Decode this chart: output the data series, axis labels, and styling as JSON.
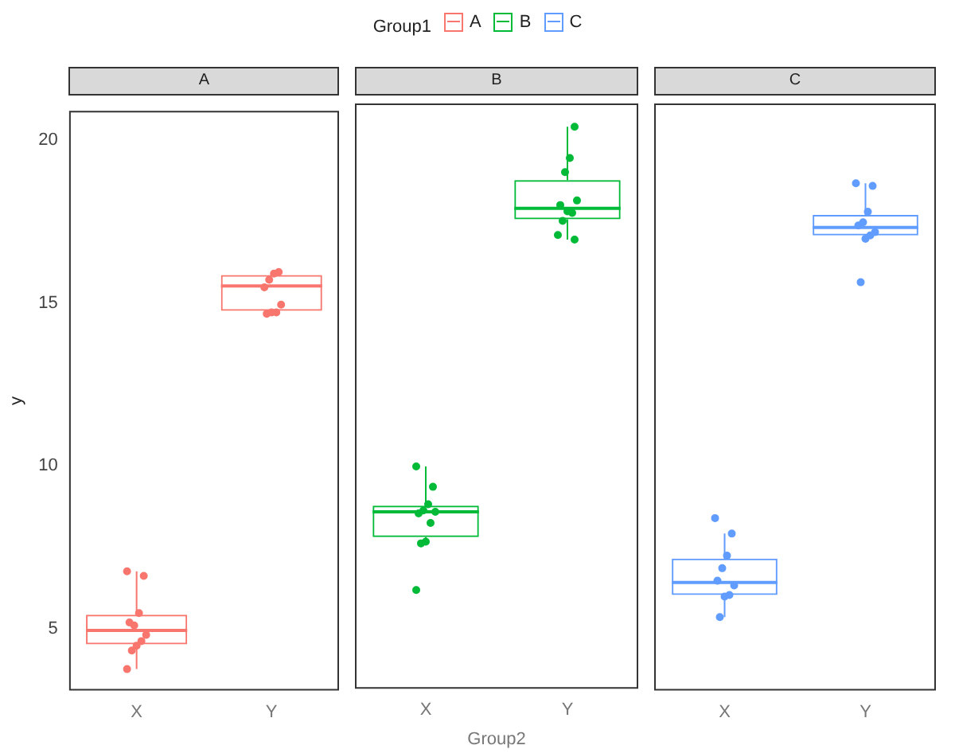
{
  "chart_data": [
    {
      "type": "box",
      "title": "A",
      "ylabel": "y",
      "legend": "top",
      "legend_title": "Group1",
      "categories": [
        "X",
        "Y"
      ],
      "ylim": [
        3.1,
        20.9
      ],
      "yticks": [
        5,
        10,
        15,
        20
      ],
      "grid": false,
      "series": [
        {
          "name": "A",
          "type": "box",
          "color": "#f8766d",
          "boxes": [
            {
              "low": 3.76,
              "q1": 4.52,
              "median": 4.95,
              "q3": 5.43,
              "high": 6.76
            },
            {
              "low": 14.67,
              "q1": 14.76,
              "median": 15.52,
              "q3": 15.86,
              "high": 15.95
            }
          ]
        },
        {
          "type": "scatter",
          "color": "#f8766d",
          "x": [
            "X",
            "X",
            "X",
            "X",
            "X",
            "X",
            "X",
            "X",
            "X",
            "X",
            "Y",
            "Y",
            "Y",
            "Y",
            "Y",
            "Y",
            "Y",
            "Y"
          ],
          "values": [
            6.76,
            6.62,
            5.48,
            5.1,
            5.19,
            4.81,
            4.62,
            4.48,
            4.33,
            3.76,
            15.95,
            15.9,
            15.71,
            15.48,
            14.95,
            14.71,
            14.71,
            14.67
          ]
        }
      ]
    },
    {
      "type": "box",
      "title": "B",
      "xlabel": "Group2",
      "tick_labels": "x",
      "categories": [
        "X",
        "Y"
      ],
      "ylim": [
        3.1,
        20.9
      ],
      "yticks": [
        5,
        10,
        15,
        20
      ],
      "grid": false,
      "series": [
        {
          "name": "B",
          "type": "box",
          "color": "#00ba38",
          "boxes": [
            {
              "low": 7.52,
              "q1": 7.71,
              "median": 8.48,
              "q3": 8.67,
              "high": 9.86
            },
            {
              "low": 16.76,
              "q1": 17.38,
              "median": 17.71,
              "q3": 18.57,
              "high": 20.19
            }
          ]
        },
        {
          "type": "scatter",
          "color": "#00ba38",
          "x": [
            "X",
            "X",
            "X",
            "X",
            "X",
            "X",
            "X",
            "X",
            "X",
            "X",
            "Y",
            "Y",
            "Y",
            "Y",
            "Y",
            "Y",
            "Y",
            "Y",
            "Y",
            "Y"
          ],
          "values": [
            9.86,
            9.24,
            8.71,
            8.52,
            8.43,
            8.48,
            8.14,
            7.57,
            7.52,
            6.1,
            20.19,
            19.24,
            18.81,
            17.81,
            17.95,
            17.57,
            17.62,
            17.33,
            16.9,
            16.76
          ]
        }
      ]
    },
    {
      "type": "box",
      "title": "C",
      "tick_labels": "x",
      "categories": [
        "X",
        "Y"
      ],
      "ylim": [
        3.1,
        20.9
      ],
      "yticks": [
        5,
        10,
        15,
        20
      ],
      "grid": false,
      "series": [
        {
          "name": "C",
          "type": "box",
          "color": "#619cff",
          "boxes": [
            {
              "low": 5.33,
              "q1": 6.0,
              "median": 6.38,
              "q3": 7.1,
              "high": 7.86
            },
            {
              "low": 16.76,
              "q1": 16.9,
              "median": 17.14,
              "q3": 17.52,
              "high": 18.48
            }
          ]
        },
        {
          "type": "scatter",
          "color": "#619cff",
          "x": [
            "X",
            "X",
            "X",
            "X",
            "X",
            "X",
            "X",
            "X",
            "X",
            "Y",
            "Y",
            "Y",
            "Y",
            "Y",
            "Y",
            "Y",
            "Y",
            "Y"
          ],
          "values": [
            8.33,
            7.86,
            7.19,
            6.81,
            6.43,
            6.29,
            6.0,
            5.95,
            5.33,
            18.48,
            18.4,
            17.62,
            17.3,
            17.2,
            17.0,
            16.9,
            16.8,
            15.48
          ]
        }
      ]
    }
  ]
}
